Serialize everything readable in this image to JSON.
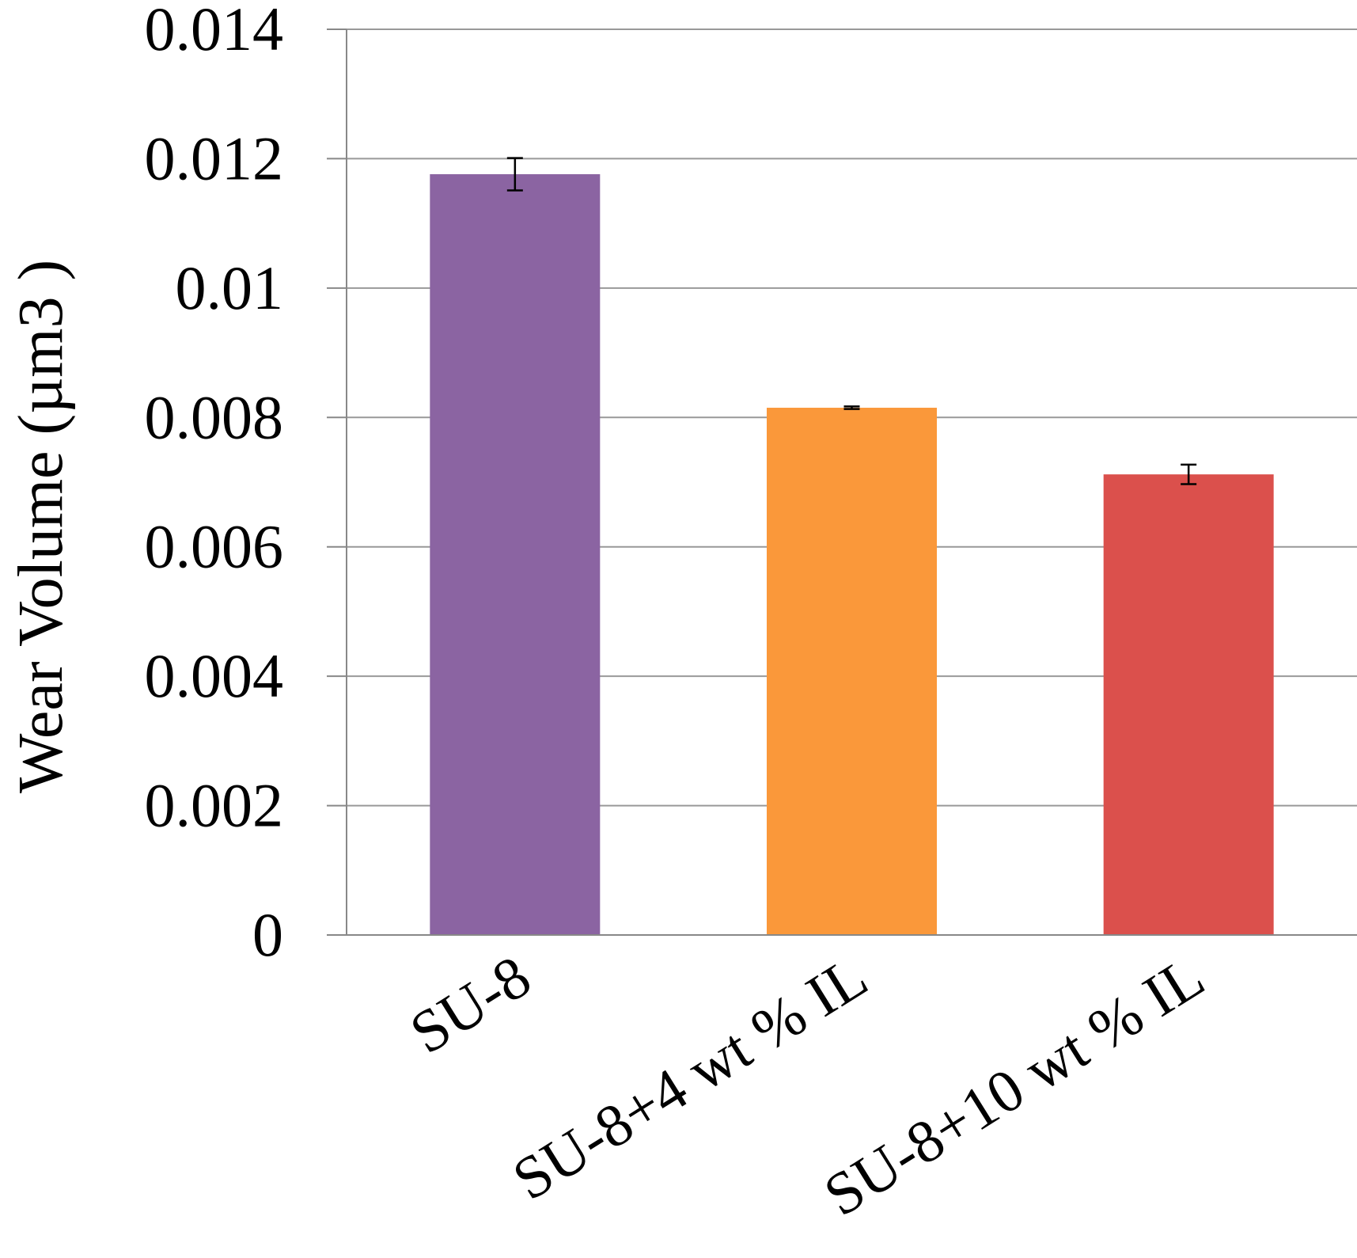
{
  "chart_data": {
    "type": "bar",
    "title": "",
    "xlabel": "",
    "ylabel": "Wear Volume (µm3 )",
    "categories": [
      "SU-8",
      "SU-8+4 wt % IL",
      "SU-8+10 wt % IL"
    ],
    "series": [
      {
        "values": [
          0.01176,
          0.00815,
          0.00712
        ],
        "errors": [
          0.00025,
          2e-05,
          0.00015
        ],
        "colors": [
          "#8B64A2",
          "#FA983A",
          "#DB504C"
        ]
      }
    ],
    "ylim": [
      0,
      0.014
    ],
    "yticks": [
      "0",
      "0.002",
      "0.004",
      "0.006",
      "0.008",
      "0.01",
      "0.012",
      "0.014"
    ],
    "grid": true,
    "legend": "none",
    "colors": {
      "grid": "#999999",
      "axis": "#888888",
      "error_bar": "#000000"
    }
  }
}
